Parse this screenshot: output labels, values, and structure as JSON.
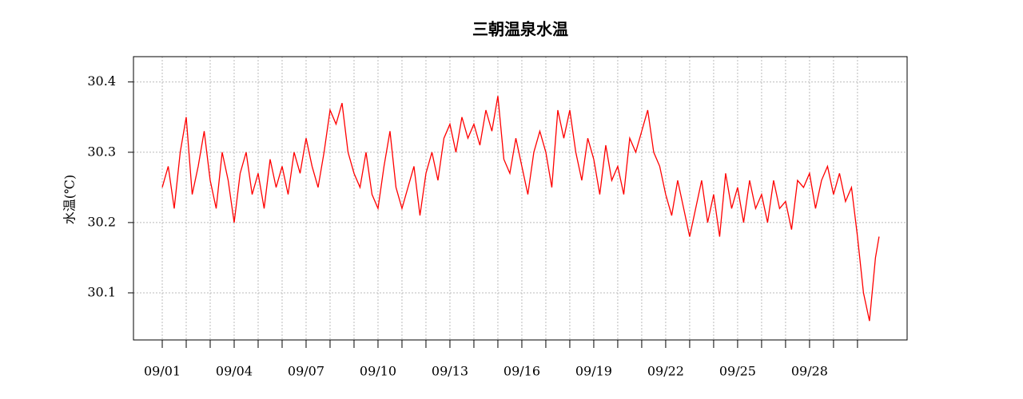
{
  "chart_data": {
    "type": "line",
    "title": "三朝温泉水温",
    "ylabel": "水温(℃)",
    "xlim": [
      -0.2,
      32.07
    ],
    "ylim": [
      30.033,
      30.436
    ],
    "xticks": [
      {
        "value": 1,
        "label": "09/01"
      },
      {
        "value": 4,
        "label": "09/04"
      },
      {
        "value": 7,
        "label": "09/07"
      },
      {
        "value": 10,
        "label": "09/10"
      },
      {
        "value": 13,
        "label": "09/13"
      },
      {
        "value": 16,
        "label": "09/16"
      },
      {
        "value": 19,
        "label": "09/19"
      },
      {
        "value": 22,
        "label": "09/22"
      },
      {
        "value": 25,
        "label": "09/25"
      },
      {
        "value": 28,
        "label": "09/28"
      }
    ],
    "xminor": [
      2,
      3,
      5,
      6,
      8,
      9,
      11,
      12,
      14,
      15,
      17,
      18,
      20,
      21,
      23,
      24,
      26,
      27,
      29,
      30
    ],
    "yticks": [
      30.1,
      30.2,
      30.3,
      30.4
    ],
    "grid": true,
    "series": [
      {
        "color": "#ff0000",
        "x": [
          1,
          1.25,
          1.5,
          1.75,
          2,
          2.25,
          2.5,
          2.75,
          3,
          3.25,
          3.5,
          3.75,
          4,
          4.25,
          4.5,
          4.75,
          5,
          5.25,
          5.5,
          5.75,
          6,
          6.25,
          6.5,
          6.75,
          7,
          7.25,
          7.5,
          7.75,
          8,
          8.25,
          8.5,
          8.75,
          9,
          9.25,
          9.5,
          9.75,
          10,
          10.25,
          10.5,
          10.75,
          11,
          11.25,
          11.5,
          11.75,
          12,
          12.25,
          12.5,
          12.75,
          13,
          13.25,
          13.5,
          13.75,
          14,
          14.25,
          14.5,
          14.75,
          15,
          15.25,
          15.5,
          15.75,
          16,
          16.25,
          16.5,
          16.75,
          17,
          17.25,
          17.5,
          17.75,
          18,
          18.25,
          18.5,
          18.75,
          19,
          19.25,
          19.5,
          19.75,
          20,
          20.25,
          20.5,
          20.75,
          21,
          21.25,
          21.5,
          21.75,
          22,
          22.25,
          22.5,
          22.75,
          23,
          23.25,
          23.5,
          23.75,
          24,
          24.25,
          24.5,
          24.75,
          25,
          25.25,
          25.5,
          25.75,
          26,
          26.25,
          26.5,
          26.75,
          27,
          27.25,
          27.5,
          27.75,
          28,
          28.25,
          28.5,
          28.75,
          29,
          29.25,
          29.5,
          29.75,
          30,
          30.25,
          30.5,
          30.75,
          30.9
        ],
        "values": [
          30.25,
          30.28,
          30.22,
          30.3,
          30.35,
          30.24,
          30.28,
          30.33,
          30.26,
          30.22,
          30.3,
          30.26,
          30.2,
          30.27,
          30.3,
          30.24,
          30.27,
          30.22,
          30.29,
          30.25,
          30.28,
          30.24,
          30.3,
          30.27,
          30.32,
          30.28,
          30.25,
          30.3,
          30.36,
          30.34,
          30.37,
          30.3,
          30.27,
          30.25,
          30.3,
          30.24,
          30.22,
          30.28,
          30.33,
          30.25,
          30.22,
          30.25,
          30.28,
          30.21,
          30.27,
          30.3,
          30.26,
          30.32,
          30.34,
          30.3,
          30.35,
          30.32,
          30.34,
          30.31,
          30.36,
          30.33,
          30.38,
          30.29,
          30.27,
          30.32,
          30.28,
          30.24,
          30.3,
          30.33,
          30.3,
          30.25,
          30.36,
          30.32,
          30.36,
          30.3,
          30.26,
          30.32,
          30.29,
          30.24,
          30.31,
          30.26,
          30.28,
          30.24,
          30.32,
          30.3,
          30.33,
          30.36,
          30.3,
          30.28,
          30.24,
          30.21,
          30.26,
          30.22,
          30.18,
          30.22,
          30.26,
          30.2,
          30.24,
          30.18,
          30.27,
          30.22,
          30.25,
          30.2,
          30.26,
          30.22,
          30.24,
          30.2,
          30.26,
          30.22,
          30.23,
          30.19,
          30.26,
          30.25,
          30.27,
          30.22,
          30.26,
          30.28,
          30.24,
          30.27,
          30.23,
          30.25,
          30.18,
          30.1,
          30.06,
          30.15,
          30.18
        ]
      }
    ]
  }
}
